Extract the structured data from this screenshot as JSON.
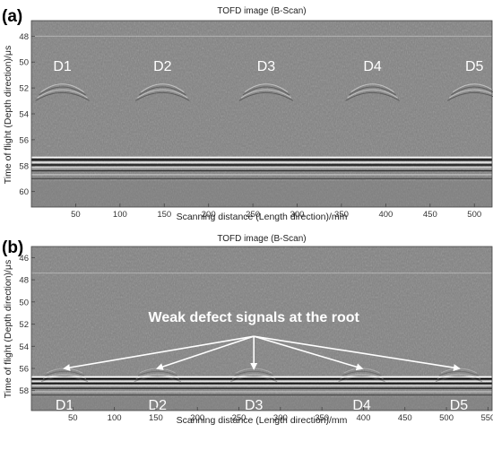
{
  "chart_data": [
    {
      "panel": "(a)",
      "type": "heatmap",
      "title": "TOFD image (B-Scan)",
      "xlabel": "Scanning distance (Length direction)/mm",
      "ylabel": "Time of flight (Depth direction)/μs",
      "xlim": [
        0,
        520
      ],
      "ylim": [
        46.8,
        61.2
      ],
      "xticks": [
        50,
        100,
        150,
        200,
        250,
        300,
        350,
        400,
        450,
        500
      ],
      "yticks": [
        48,
        50,
        52,
        54,
        56,
        58,
        60
      ],
      "grid": false,
      "colormap": "gray",
      "features": {
        "lateral_wave_time": 48.0,
        "backwall_time": 57.9,
        "defects": [
          {
            "label": "D1",
            "x": 35,
            "t": 51.7
          },
          {
            "label": "D2",
            "x": 148,
            "t": 51.7
          },
          {
            "label": "D3",
            "x": 265,
            "t": 51.7
          },
          {
            "label": "D4",
            "x": 385,
            "t": 51.7
          },
          {
            "label": "D5",
            "x": 500,
            "t": 51.7
          }
        ]
      },
      "annotations": []
    },
    {
      "panel": "(b)",
      "type": "heatmap",
      "title": "TOFD image (B-Scan)",
      "xlabel": "Scanning distance (Length direction)/mm",
      "ylabel": "Time of flight (Depth direction)/μs",
      "xlim": [
        0,
        555
      ],
      "ylim": [
        45.0,
        59.8
      ],
      "xticks": [
        50,
        100,
        150,
        200,
        250,
        300,
        350,
        400,
        450,
        500,
        550
      ],
      "yticks": [
        46,
        48,
        50,
        52,
        54,
        56,
        58
      ],
      "grid": false,
      "colormap": "gray",
      "features": {
        "lateral_wave_time": 47.4,
        "backwall_time": 57.3,
        "defects": [
          {
            "label": "D1",
            "x": 40,
            "t": 56.0
          },
          {
            "label": "D2",
            "x": 152,
            "t": 56.0
          },
          {
            "label": "D3",
            "x": 268,
            "t": 56.0
          },
          {
            "label": "D4",
            "x": 398,
            "t": 56.0
          },
          {
            "label": "D5",
            "x": 515,
            "t": 56.0
          }
        ]
      },
      "annotations": [
        {
          "text": "Weak defect signals at the root",
          "arrow_origin_x": 268,
          "arrow_origin_t": 53.1
        }
      ]
    }
  ],
  "colors": {
    "background": "#818181",
    "text_on_image": "#ffffff",
    "axis": "#444444"
  }
}
